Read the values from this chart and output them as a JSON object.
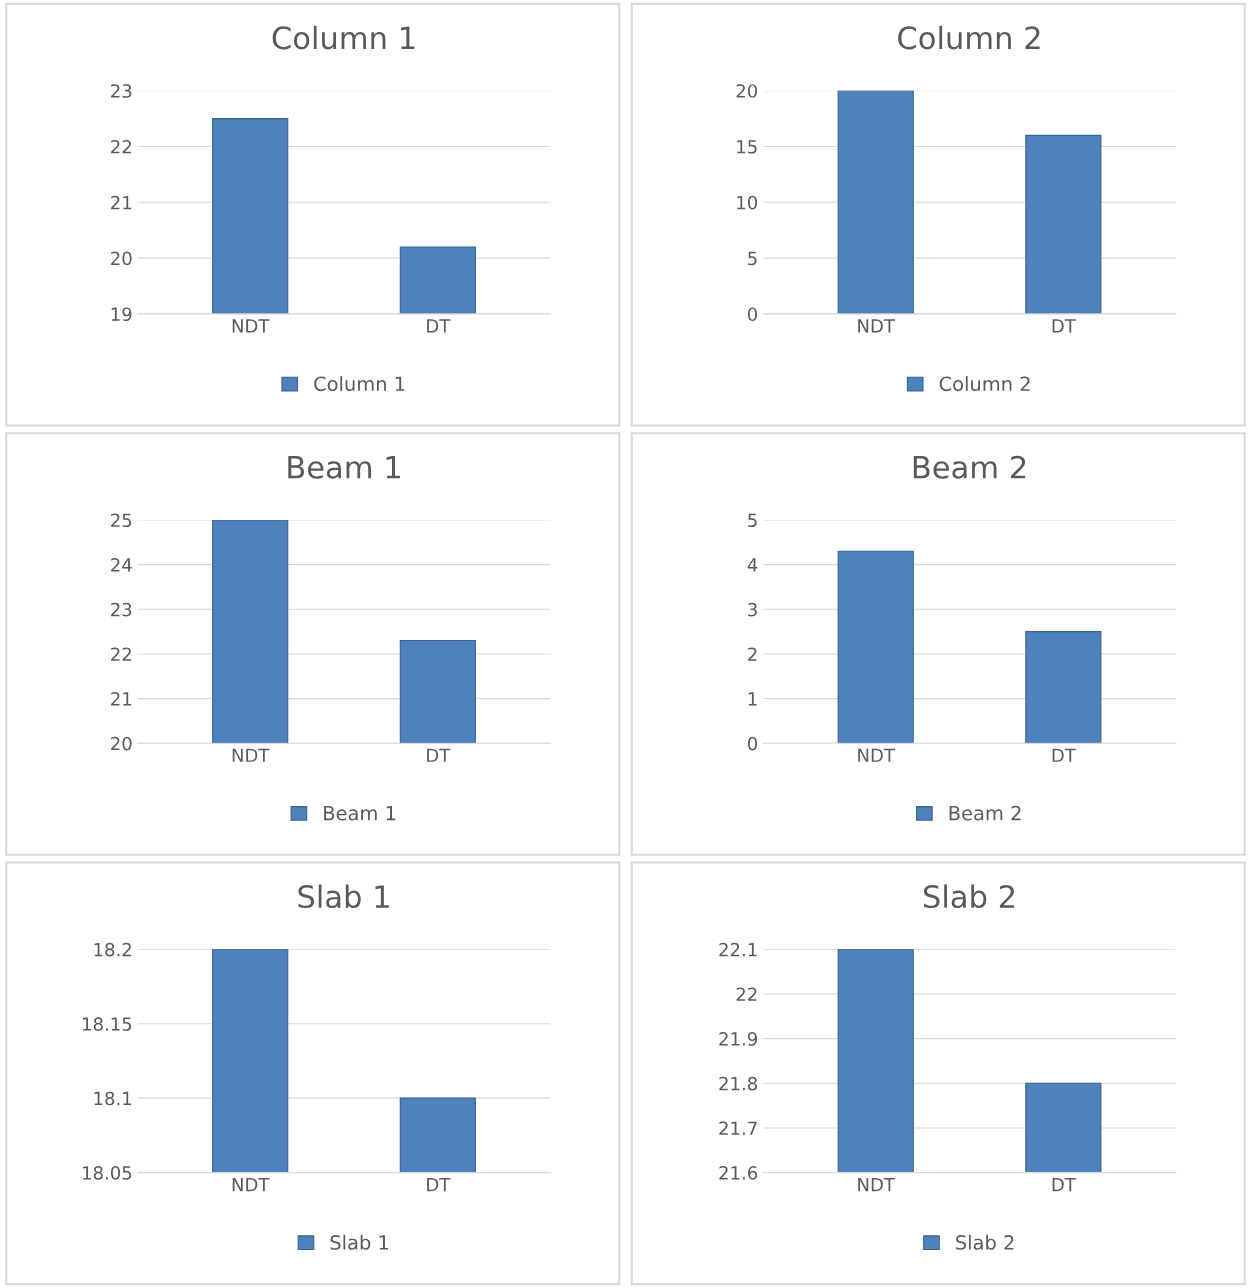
{
  "chart_data": [
    {
      "type": "bar",
      "title": "Column 1",
      "categories": [
        "NDT",
        "DT"
      ],
      "series": [
        {
          "name": "Column 1",
          "color": "#4f81bd",
          "values": [
            22.5,
            20.2
          ]
        }
      ],
      "ylim": [
        19,
        23
      ],
      "yticks": [
        19,
        20,
        21,
        22,
        23
      ],
      "grid": "y",
      "legend": "bottom"
    },
    {
      "type": "bar",
      "title": "Column 2",
      "categories": [
        "NDT",
        "DT"
      ],
      "series": [
        {
          "name": "Column 2",
          "color": "#4f81bd",
          "values": [
            20,
            16
          ]
        }
      ],
      "ylim": [
        0,
        20
      ],
      "yticks": [
        0,
        5,
        10,
        15,
        20
      ],
      "grid": "y",
      "legend": "bottom"
    },
    {
      "type": "bar",
      "title": "Beam 1",
      "categories": [
        "NDT",
        "DT"
      ],
      "series": [
        {
          "name": "Beam 1",
          "color": "#4f81bd",
          "values": [
            25,
            22.3
          ]
        }
      ],
      "ylim": [
        20,
        25
      ],
      "yticks": [
        20,
        21,
        22,
        23,
        24,
        25
      ],
      "grid": "y",
      "legend": "bottom"
    },
    {
      "type": "bar",
      "title": "Beam 2",
      "categories": [
        "NDT",
        "DT"
      ],
      "series": [
        {
          "name": "Beam 2",
          "color": "#4f81bd",
          "values": [
            4.3,
            2.5
          ]
        }
      ],
      "ylim": [
        0,
        5
      ],
      "yticks": [
        0,
        1,
        2,
        3,
        4,
        5
      ],
      "grid": "y",
      "legend": "bottom"
    },
    {
      "type": "bar",
      "title": "Slab 1",
      "categories": [
        "NDT",
        "DT"
      ],
      "series": [
        {
          "name": "Slab 1",
          "color": "#4f81bd",
          "values": [
            18.2,
            18.1
          ]
        }
      ],
      "ylim": [
        18.05,
        18.2
      ],
      "yticks": [
        18.05,
        18.1,
        18.15,
        18.2
      ],
      "grid": "y",
      "legend": "bottom"
    },
    {
      "type": "bar",
      "title": "Slab 2",
      "categories": [
        "NDT",
        "DT"
      ],
      "series": [
        {
          "name": "Slab 2",
          "color": "#4f81bd",
          "values": [
            22.1,
            21.8
          ]
        }
      ],
      "ylim": [
        21.6,
        22.1
      ],
      "yticks": [
        21.6,
        21.7,
        21.8,
        21.9,
        22,
        22.1
      ],
      "grid": "y",
      "legend": "bottom"
    }
  ]
}
